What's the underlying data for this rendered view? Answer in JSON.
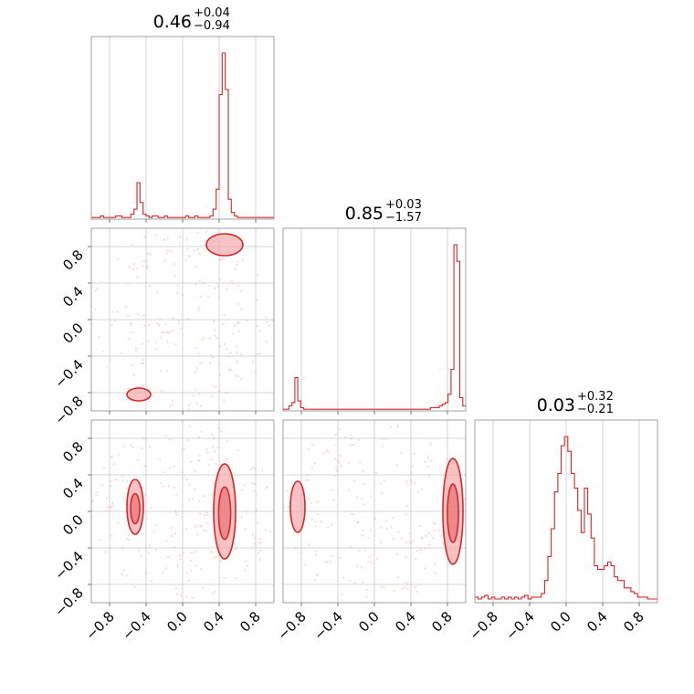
{
  "chart_data": {
    "type": "corner",
    "parameters": 3,
    "color": "#d62728",
    "range": [
      -1.0,
      1.0
    ],
    "tick_values": [
      -0.8,
      -0.4,
      0.0,
      0.4,
      0.8
    ],
    "tick_labels": [
      "−0.8",
      "−0.4",
      "0.0",
      "0.4",
      "0.8"
    ],
    "grid": true,
    "titles": [
      {
        "median": "0.46",
        "plus": "+0.04",
        "minus": "−0.94"
      },
      {
        "median": "0.85",
        "plus": "+0.03",
        "minus": "−1.57"
      },
      {
        "median": "0.03",
        "plus": "+0.32",
        "minus": "−0.21"
      }
    ],
    "histograms": [
      {
        "param": 0,
        "bin_edges_range": [
          -1.0,
          1.0
        ],
        "counts": [
          1,
          1,
          1,
          2,
          1,
          1,
          1,
          1,
          2,
          2,
          1,
          1,
          1,
          3,
          6,
          22,
          10,
          3,
          2,
          1,
          2,
          2,
          1,
          1,
          2,
          1,
          1,
          1,
          1,
          1,
          1,
          2,
          1,
          1,
          2,
          1,
          1,
          1,
          1,
          2,
          6,
          18,
          75,
          100,
          78,
          12,
          4,
          2,
          1,
          1,
          1,
          1,
          1,
          1,
          1,
          1,
          1,
          1,
          1,
          1
        ]
      },
      {
        "param": 1,
        "bin_edges_range": [
          -1.0,
          1.0
        ],
        "counts": [
          1,
          1,
          3,
          5,
          20,
          6,
          2,
          1,
          1,
          1,
          1,
          1,
          1,
          1,
          1,
          1,
          1,
          1,
          1,
          1,
          1,
          1,
          1,
          1,
          1,
          1,
          1,
          1,
          1,
          1,
          1,
          1,
          1,
          1,
          1,
          1,
          1,
          1,
          1,
          1,
          1,
          1,
          1,
          1,
          1,
          1,
          1,
          1,
          1,
          1,
          2,
          2,
          2,
          3,
          4,
          5,
          10,
          25,
          100,
          90,
          8,
          3
        ]
      },
      {
        "param": 2,
        "bin_edges_range": [
          -1.0,
          1.0
        ],
        "counts": [
          3,
          2,
          3,
          4,
          2,
          3,
          2,
          2,
          3,
          2,
          3,
          2,
          3,
          2,
          3,
          4,
          2,
          3,
          3,
          3,
          5,
          12,
          25,
          40,
          60,
          70,
          85,
          90,
          82,
          70,
          62,
          50,
          38,
          62,
          48,
          35,
          20,
          18,
          18,
          20,
          22,
          20,
          14,
          12,
          12,
          8,
          8,
          6,
          5,
          3,
          3,
          3,
          2,
          2,
          2
        ]
      }
    ],
    "contours": {
      "1_0": [
        {
          "x": 0.46,
          "y": 0.82,
          "level": 1
        },
        {
          "x": -0.48,
          "y": -0.82,
          "level": 1
        }
      ],
      "2_0": [
        {
          "x": 0.46,
          "y": 0.0,
          "level": 2
        },
        {
          "x": -0.52,
          "y": 0.05,
          "level": 2
        }
      ],
      "2_1": [
        {
          "x": 0.86,
          "y": 0.0,
          "level": 2
        },
        {
          "x": -0.84,
          "y": 0.05,
          "level": 1
        }
      ]
    }
  }
}
